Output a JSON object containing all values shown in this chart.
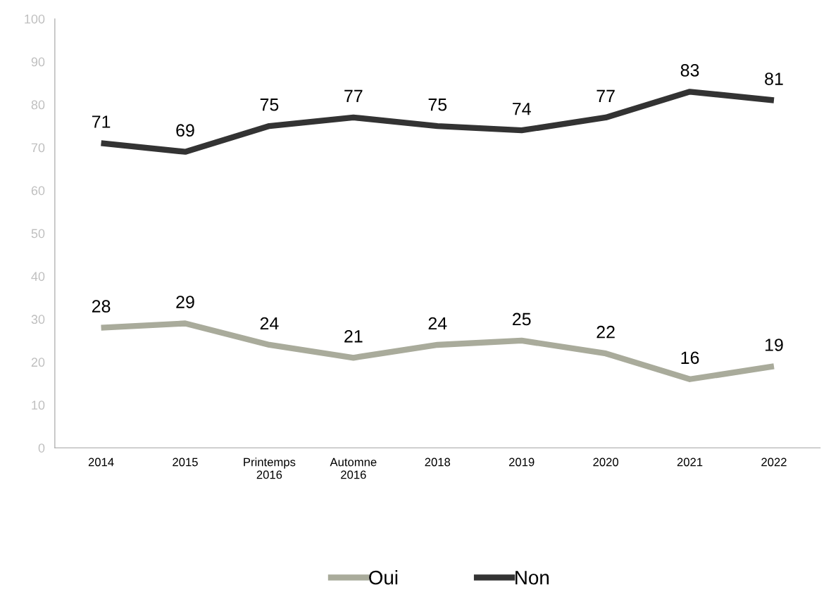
{
  "chart_data": {
    "type": "line",
    "categories": [
      "2014",
      "2015",
      "Printemps\n2016",
      "Automne\n2016",
      "2018",
      "2019",
      "2020",
      "2021",
      "2022"
    ],
    "series": [
      {
        "name": "Oui",
        "color": "#a9ab9b",
        "values": [
          28,
          29,
          24,
          21,
          24,
          25,
          22,
          16,
          19
        ]
      },
      {
        "name": "Non",
        "color": "#333333",
        "values": [
          71,
          69,
          75,
          77,
          75,
          74,
          77,
          83,
          81
        ]
      }
    ],
    "ylim": [
      0,
      100
    ],
    "yticks": [
      0,
      10,
      20,
      30,
      40,
      50,
      60,
      70,
      80,
      90,
      100
    ],
    "grid": false,
    "legend": "bottom",
    "data_labels": true,
    "marker": "none",
    "line_style": "solid"
  }
}
